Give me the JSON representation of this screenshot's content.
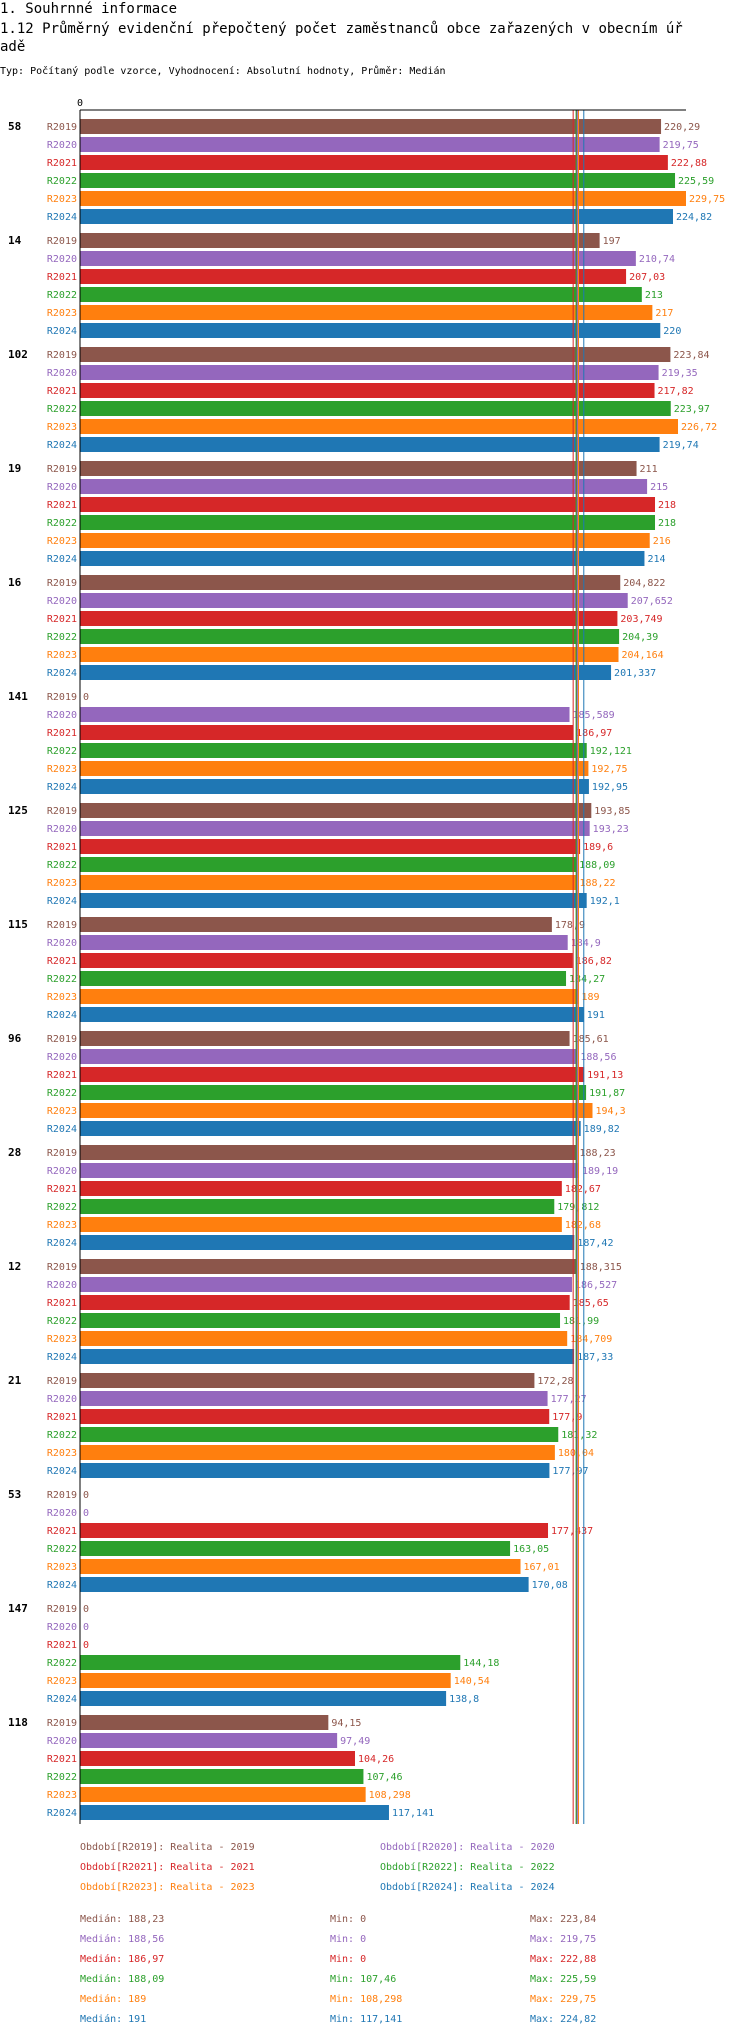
{
  "header": {
    "section": "1. Souhrnné informace",
    "title": "1.12 Průměrný evidenční přepočtený počet zaměstnanců obce zařazených v obecním úřadě",
    "title_line1": "1.12 Průměrný evidenční přepočtený počet zaměstnanců obce zařazených v obecním úř",
    "title_line2": "adě",
    "subtitle": "Typ: Počítaný podle vzorce, Vyhodnocení: Absolutní hodnoty, Průměr: Medián"
  },
  "chart_data": {
    "type": "bar",
    "orientation": "horizontal",
    "axis_zero_label": "0",
    "xlim": [
      0,
      229.75
    ],
    "series_names": [
      "R2019",
      "R2020",
      "R2021",
      "R2022",
      "R2023",
      "R2024"
    ],
    "series_colors": [
      "#8c564b",
      "#9467bd",
      "#d62728",
      "#2ca02c",
      "#ff7f0e",
      "#1f77b4"
    ],
    "groups": [
      {
        "name": "58",
        "values": [
          220.29,
          219.75,
          222.88,
          225.59,
          229.75,
          224.82
        ],
        "labels": [
          "220,29",
          "219,75",
          "222,88",
          "225,59",
          "229,75",
          "224,82"
        ]
      },
      {
        "name": "14",
        "values": [
          197,
          210.74,
          207.03,
          213,
          217,
          220
        ],
        "labels": [
          "197",
          "210,74",
          "207,03",
          "213",
          "217",
          "220"
        ]
      },
      {
        "name": "102",
        "values": [
          223.84,
          219.35,
          217.82,
          223.97,
          226.72,
          219.74
        ],
        "labels": [
          "223,84",
          "219,35",
          "217,82",
          "223,97",
          "226,72",
          "219,74"
        ]
      },
      {
        "name": "19",
        "values": [
          211,
          215,
          218,
          218,
          216,
          214
        ],
        "labels": [
          "211",
          "215",
          "218",
          "218",
          "216",
          "214"
        ]
      },
      {
        "name": "16",
        "values": [
          204.822,
          207.652,
          203.749,
          204.39,
          204.164,
          201.337
        ],
        "labels": [
          "204,822",
          "207,652",
          "203,749",
          "204,39",
          "204,164",
          "201,337"
        ]
      },
      {
        "name": "141",
        "values": [
          0,
          185.589,
          186.97,
          192.121,
          192.75,
          192.95
        ],
        "labels": [
          "0",
          "185,589",
          "186,97",
          "192,121",
          "192,75",
          "192,95"
        ]
      },
      {
        "name": "125",
        "values": [
          193.85,
          193.23,
          189.6,
          188.09,
          188.22,
          192.1
        ],
        "labels": [
          "193,85",
          "193,23",
          "189,6",
          "188,09",
          "188,22",
          "192,1"
        ]
      },
      {
        "name": "115",
        "values": [
          178.9,
          184.9,
          186.82,
          184.27,
          189,
          191
        ],
        "labels": [
          "178,9",
          "184,9",
          "186,82",
          "184,27",
          "189",
          "191"
        ]
      },
      {
        "name": "96",
        "values": [
          185.61,
          188.56,
          191.13,
          191.87,
          194.3,
          189.82
        ],
        "labels": [
          "185,61",
          "188,56",
          "191,13",
          "191,87",
          "194,3",
          "189,82"
        ]
      },
      {
        "name": "28",
        "values": [
          188.23,
          189.19,
          182.67,
          179.812,
          182.68,
          187.42
        ],
        "labels": [
          "188,23",
          "189,19",
          "182,67",
          "179,812",
          "182,68",
          "187,42"
        ]
      },
      {
        "name": "12",
        "values": [
          188.315,
          186.527,
          185.65,
          181.99,
          184.709,
          187.33
        ],
        "labels": [
          "188,315",
          "186,527",
          "185,65",
          "181,99",
          "184,709",
          "187,33"
        ]
      },
      {
        "name": "21",
        "values": [
          172.28,
          177.27,
          177.9,
          181.32,
          180.04,
          177.97
        ],
        "labels": [
          "172,28",
          "177,27",
          "177,9",
          "181,32",
          "180,04",
          "177,97"
        ]
      },
      {
        "name": "53",
        "values": [
          0,
          0,
          177.437,
          163.05,
          167.01,
          170.08
        ],
        "labels": [
          "0",
          "0",
          "177,437",
          "163,05",
          "167,01",
          "170,08"
        ]
      },
      {
        "name": "147",
        "values": [
          0,
          0,
          0,
          144.18,
          140.54,
          138.8
        ],
        "labels": [
          "0",
          "0",
          "0",
          "144,18",
          "140,54",
          "138,8"
        ]
      },
      {
        "name": "118",
        "values": [
          94.15,
          97.49,
          104.26,
          107.46,
          108.298,
          117.141
        ],
        "labels": [
          "94,15",
          "97,49",
          "104,26",
          "107,46",
          "108,298",
          "117,141"
        ]
      }
    ],
    "median_lines": [
      188.23,
      188.56,
      186.97,
      188.09,
      189,
      191
    ],
    "legend": [
      {
        "text": "Období[R2019]: Realita - 2019",
        "color": "#8c564b"
      },
      {
        "text": "Období[R2020]: Realita - 2020",
        "color": "#9467bd"
      },
      {
        "text": "Období[R2021]: Realita - 2021",
        "color": "#d62728"
      },
      {
        "text": "Období[R2022]: Realita - 2022",
        "color": "#2ca02c"
      },
      {
        "text": "Období[R2023]: Realita - 2023",
        "color": "#ff7f0e"
      },
      {
        "text": "Období[R2024]: Realita - 2024",
        "color": "#1f77b4"
      }
    ],
    "stats": [
      {
        "median": "Medián: 188,23",
        "min": "Min: 0",
        "max": "Max: 223,84",
        "color": "#8c564b"
      },
      {
        "median": "Medián: 188,56",
        "min": "Min: 0",
        "max": "Max: 219,75",
        "color": "#9467bd"
      },
      {
        "median": "Medián: 186,97",
        "min": "Min: 0",
        "max": "Max: 222,88",
        "color": "#d62728"
      },
      {
        "median": "Medián: 188,09",
        "min": "Min: 107,46",
        "max": "Max: 225,59",
        "color": "#2ca02c"
      },
      {
        "median": "Medián: 189",
        "min": "Min: 108,298",
        "max": "Max: 229,75",
        "color": "#ff7f0e"
      },
      {
        "median": "Medián: 191",
        "min": "Min: 117,141",
        "max": "Max: 224,82",
        "color": "#1f77b4"
      }
    ]
  }
}
